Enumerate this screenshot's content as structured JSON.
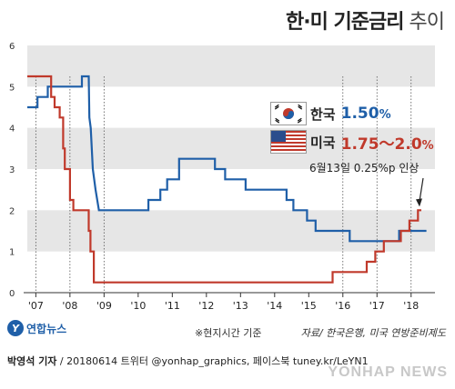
{
  "title": {
    "main": "한·미 기준금리",
    "sub": "추이"
  },
  "legend": {
    "korea": {
      "name": "한국",
      "value": "1.50",
      "unit": "%",
      "color": "#1f5fa8"
    },
    "usa": {
      "name": "미국",
      "value": "1.75～2.0",
      "unit": "%",
      "color": "#c0392b"
    }
  },
  "annotation": "6월13일 0.25%p 인상",
  "note": "※현지시간 기준",
  "source": "자료/ 한국은행, 미국 연방준비제도",
  "logo": {
    "mark": "Y",
    "text": "연합뉴스"
  },
  "footer": {
    "byline_name": "박영석 기자",
    "byline_rest": " / 20180614  트위터 @yonhap_graphics, 페이스북 tuney.kr/LeYN1",
    "watermark": "YONHAP NEWS"
  },
  "chart_data": {
    "type": "line",
    "title": "한·미 기준금리 추이",
    "xlabel": "",
    "ylabel": "",
    "ylim": [
      0,
      6
    ],
    "xlim": [
      2007.0,
      2018.95
    ],
    "yticks": [
      "0",
      "1",
      "2",
      "3",
      "4",
      "5",
      "6"
    ],
    "xticks": [
      {
        "label": "'07",
        "x": 2007.25
      },
      {
        "label": "'08",
        "x": 2008.25
      },
      {
        "label": "'09",
        "x": 2009.25
      },
      {
        "label": "'10",
        "x": 2010.25
      },
      {
        "label": "'11",
        "x": 2011.25
      },
      {
        "label": "'12",
        "x": 2012.25
      },
      {
        "label": "'13",
        "x": 2013.25
      },
      {
        "label": "'14",
        "x": 2014.25
      },
      {
        "label": "'15",
        "x": 2015.25
      },
      {
        "label": "'16",
        "x": 2016.25
      },
      {
        "label": "'17",
        "x": 2017.25
      },
      {
        "label": "'18",
        "x": 2018.25
      }
    ],
    "grid_bands": true,
    "series": [
      {
        "name": "한국",
        "color": "#1f5fa8",
        "points": [
          [
            2007.0,
            4.5
          ],
          [
            2007.3,
            4.5
          ],
          [
            2007.3,
            4.75
          ],
          [
            2007.6,
            4.75
          ],
          [
            2007.6,
            5.0
          ],
          [
            2008.6,
            5.0
          ],
          [
            2008.6,
            5.25
          ],
          [
            2008.8,
            5.25
          ],
          [
            2008.82,
            4.25
          ],
          [
            2008.86,
            4.0
          ],
          [
            2008.92,
            3.0
          ],
          [
            2009.0,
            2.5
          ],
          [
            2009.1,
            2.0
          ],
          [
            2010.55,
            2.0
          ],
          [
            2010.55,
            2.25
          ],
          [
            2010.9,
            2.25
          ],
          [
            2010.9,
            2.5
          ],
          [
            2011.1,
            2.5
          ],
          [
            2011.1,
            2.75
          ],
          [
            2011.45,
            2.75
          ],
          [
            2011.45,
            3.25
          ],
          [
            2012.5,
            3.25
          ],
          [
            2012.5,
            3.0
          ],
          [
            2012.8,
            3.0
          ],
          [
            2012.8,
            2.75
          ],
          [
            2013.4,
            2.75
          ],
          [
            2013.4,
            2.5
          ],
          [
            2014.6,
            2.5
          ],
          [
            2014.6,
            2.25
          ],
          [
            2014.8,
            2.25
          ],
          [
            2014.8,
            2.0
          ],
          [
            2015.2,
            2.0
          ],
          [
            2015.2,
            1.75
          ],
          [
            2015.45,
            1.75
          ],
          [
            2015.45,
            1.5
          ],
          [
            2016.45,
            1.5
          ],
          [
            2016.45,
            1.25
          ],
          [
            2017.9,
            1.25
          ],
          [
            2017.9,
            1.5
          ],
          [
            2018.7,
            1.5
          ]
        ]
      },
      {
        "name": "미국",
        "color": "#c0392b",
        "points": [
          [
            2007.0,
            5.25
          ],
          [
            2007.7,
            5.25
          ],
          [
            2007.7,
            4.75
          ],
          [
            2007.8,
            4.75
          ],
          [
            2007.8,
            4.5
          ],
          [
            2007.95,
            4.5
          ],
          [
            2007.95,
            4.25
          ],
          [
            2008.05,
            4.25
          ],
          [
            2008.05,
            3.5
          ],
          [
            2008.1,
            3.5
          ],
          [
            2008.1,
            3.0
          ],
          [
            2008.25,
            3.0
          ],
          [
            2008.25,
            2.25
          ],
          [
            2008.35,
            2.25
          ],
          [
            2008.35,
            2.0
          ],
          [
            2008.8,
            2.0
          ],
          [
            2008.8,
            1.5
          ],
          [
            2008.85,
            1.5
          ],
          [
            2008.85,
            1.0
          ],
          [
            2008.95,
            1.0
          ],
          [
            2008.95,
            0.25
          ],
          [
            2015.95,
            0.25
          ],
          [
            2015.95,
            0.5
          ],
          [
            2016.95,
            0.5
          ],
          [
            2016.95,
            0.75
          ],
          [
            2017.2,
            0.75
          ],
          [
            2017.2,
            1.0
          ],
          [
            2017.45,
            1.0
          ],
          [
            2017.45,
            1.25
          ],
          [
            2017.95,
            1.25
          ],
          [
            2017.95,
            1.5
          ],
          [
            2018.2,
            1.5
          ],
          [
            2018.2,
            1.75
          ],
          [
            2018.45,
            1.75
          ],
          [
            2018.45,
            2.0
          ],
          [
            2018.55,
            2.0
          ]
        ]
      }
    ]
  }
}
